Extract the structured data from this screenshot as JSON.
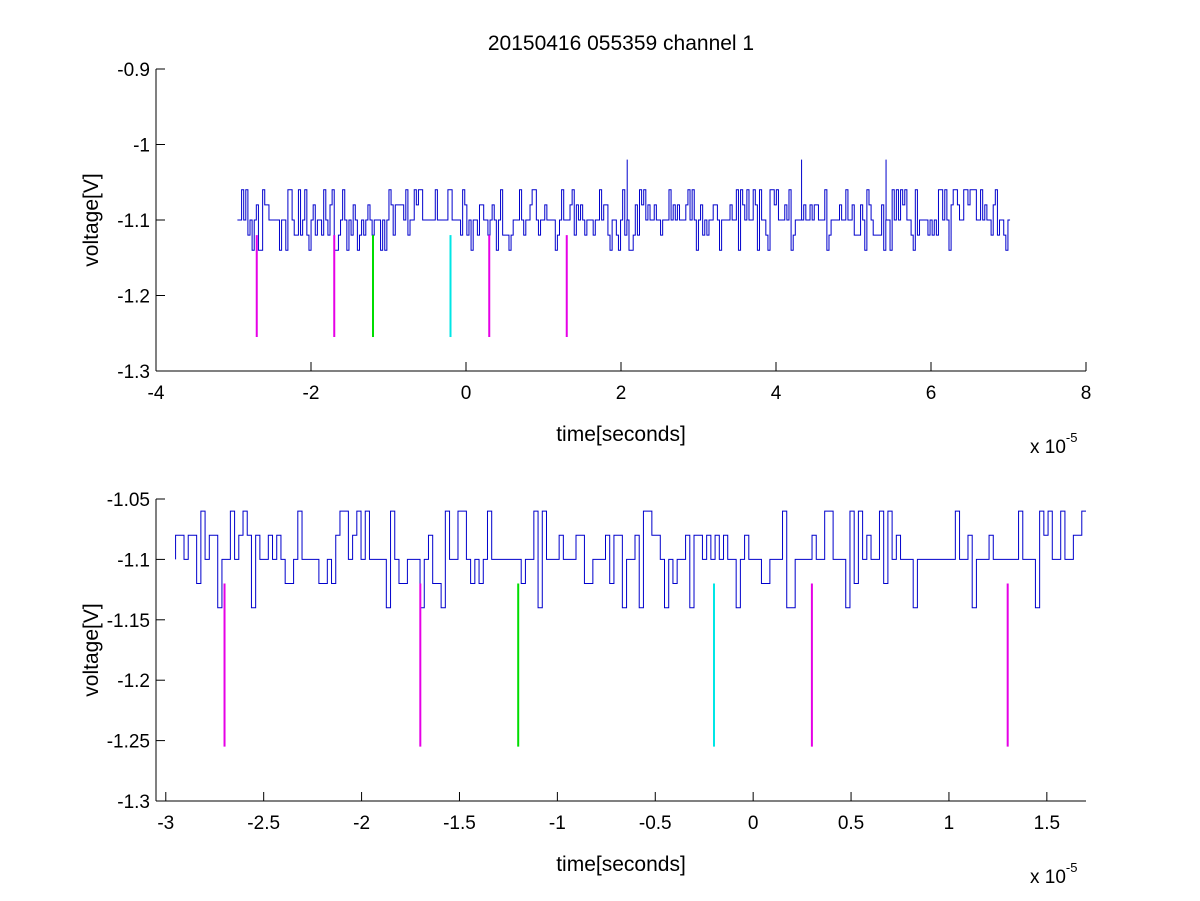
{
  "chart_data": [
    {
      "type": "line",
      "title": "20150416 055359 channel 1",
      "xlabel": "time[seconds]",
      "ylabel": "voltage[V]",
      "x_multiplier": {
        "base": "x 10",
        "exponent": "-5"
      },
      "xlim": [
        -4,
        8
      ],
      "ylim": [
        -1.3,
        -0.9
      ],
      "x_ticks": [
        -4,
        -2,
        0,
        2,
        4,
        6,
        8
      ],
      "x_tick_labels": [
        "-4",
        "-2",
        "0",
        "2",
        "4",
        "6",
        "8"
      ],
      "y_ticks": [
        -1.3,
        -1.2,
        -1.1,
        -1,
        -0.9
      ],
      "y_tick_labels": [
        "-1.3",
        "-1.2",
        "-1.1",
        "-1",
        "-0.9"
      ],
      "grid": false,
      "series": [
        {
          "style": "noisy-step",
          "color": "#0000cc",
          "x_range": [
            -2.95,
            7.02
          ],
          "levels": [
            -1.06,
            -1.08,
            -1.1,
            -1.12,
            -1.14
          ],
          "baseline": -1.1,
          "spikes": [
            {
              "x": 2.08,
              "y": -1.02
            },
            {
              "x": 4.33,
              "y": -1.02
            },
            {
              "x": 5.42,
              "y": -1.02
            }
          ]
        }
      ],
      "markers": [
        {
          "x": -2.7,
          "y_top": -1.12,
          "y_bottom": -1.255,
          "color": "#e600e6"
        },
        {
          "x": -1.7,
          "y_top": -1.12,
          "y_bottom": -1.255,
          "color": "#e600e6"
        },
        {
          "x": -1.2,
          "y_top": -1.12,
          "y_bottom": -1.255,
          "color": "#00dd00"
        },
        {
          "x": -0.2,
          "y_top": -1.12,
          "y_bottom": -1.255,
          "color": "#00e6e6"
        },
        {
          "x": 0.3,
          "y_top": -1.12,
          "y_bottom": -1.255,
          "color": "#e600e6"
        },
        {
          "x": 1.3,
          "y_top": -1.12,
          "y_bottom": -1.255,
          "color": "#e600e6"
        }
      ]
    },
    {
      "type": "line",
      "title": "",
      "xlabel": "time[seconds]",
      "ylabel": "voltage[V]",
      "x_multiplier": {
        "base": "x 10",
        "exponent": "-5"
      },
      "xlim": [
        -3.05,
        1.7
      ],
      "ylim": [
        -1.3,
        -1.05
      ],
      "x_ticks": [
        -3,
        -2.5,
        -2,
        -1.5,
        -1,
        -0.5,
        0,
        0.5,
        1,
        1.5
      ],
      "x_tick_labels": [
        "-3",
        "-2.5",
        "-2",
        "-1.5",
        "-1",
        "-0.5",
        "0",
        "0.5",
        "1",
        "1.5"
      ],
      "y_ticks": [
        -1.3,
        -1.25,
        -1.2,
        -1.15,
        -1.1,
        -1.05
      ],
      "y_tick_labels": [
        "-1.3",
        "-1.25",
        "-1.2",
        "-1.15",
        "-1.1",
        "-1.05"
      ],
      "grid": false,
      "series": [
        {
          "style": "noisy-step",
          "color": "#0000cc",
          "x_range": [
            -2.95,
            1.7
          ],
          "levels": [
            -1.06,
            -1.08,
            -1.1,
            -1.12,
            -1.14
          ],
          "baseline": -1.1,
          "spikes": []
        }
      ],
      "markers": [
        {
          "x": -2.7,
          "y_top": -1.12,
          "y_bottom": -1.255,
          "color": "#e600e6"
        },
        {
          "x": -1.7,
          "y_top": -1.12,
          "y_bottom": -1.255,
          "color": "#e600e6"
        },
        {
          "x": -1.2,
          "y_top": -1.12,
          "y_bottom": -1.255,
          "color": "#00dd00"
        },
        {
          "x": -0.2,
          "y_top": -1.12,
          "y_bottom": -1.255,
          "color": "#00e6e6"
        },
        {
          "x": 0.3,
          "y_top": -1.12,
          "y_bottom": -1.255,
          "color": "#e600e6"
        },
        {
          "x": 1.3,
          "y_top": -1.12,
          "y_bottom": -1.255,
          "color": "#e600e6"
        }
      ]
    }
  ]
}
